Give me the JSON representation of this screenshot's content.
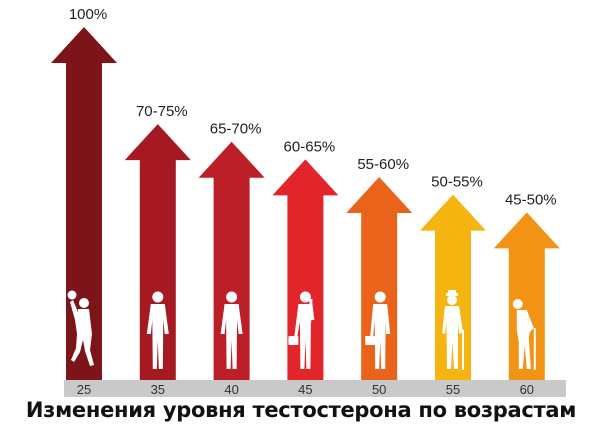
{
  "caption": "Изменения уровня тестостерона по возрастам",
  "chart_data": {
    "type": "bar",
    "title": "",
    "xlabel": "",
    "ylabel": "",
    "ylim": [
      0,
      100
    ],
    "grid": false,
    "categories": [
      "25",
      "35",
      "40",
      "45",
      "50",
      "55",
      "60"
    ],
    "values": [
      100,
      72.5,
      67.5,
      62.5,
      57.5,
      52.5,
      47.5
    ],
    "data_labels": [
      "100%",
      "70-75%",
      "65-70%",
      "60-65%",
      "55-60%",
      "50-55%",
      "45-50%"
    ],
    "colors": [
      "#7d1419",
      "#a51a22",
      "#bd1f28",
      "#e2242b",
      "#e9631b",
      "#f5b40f",
      "#f29316"
    ],
    "figure_icons": [
      "basketball-player-icon",
      "standing-man-icon",
      "standing-man-icon",
      "man-with-phone-and-briefcase-icon",
      "man-with-briefcase-icon",
      "elderly-man-with-cane-icon",
      "elderly-man-with-cane-icon"
    ]
  }
}
